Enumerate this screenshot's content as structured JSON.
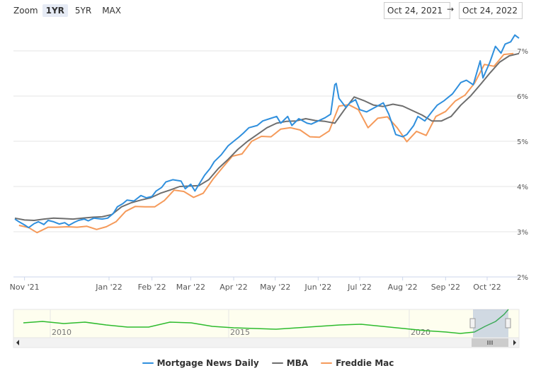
{
  "zoom": {
    "label": "Zoom",
    "buttons": [
      "1YR",
      "5YR",
      "MAX"
    ],
    "active": "1YR"
  },
  "range": {
    "from": "Oct 24, 2021",
    "arrow": "→",
    "to": "Oct 24, 2022"
  },
  "colors": {
    "mnd": "#2f8fdd",
    "mba": "#6e6e6e",
    "freddie": "#f59a5a",
    "navigator": "#2dbb2d",
    "grid": "#e6e6e6"
  },
  "chart_data": {
    "type": "line",
    "title": "",
    "xlabel": "",
    "ylabel": "",
    "ylim": [
      2,
      7.5
    ],
    "y_ticks": [
      "2%",
      "3%",
      "4%",
      "5%",
      "6%",
      "7%"
    ],
    "x_ticks": [
      "Nov '21",
      "Jan '22",
      "Feb '22",
      "Mar '22",
      "Apr '22",
      "May '22",
      "Jun '22",
      "Jul '22",
      "Aug '22",
      "Sep '22",
      "Oct '22"
    ],
    "x_range": [
      "2021-10-24",
      "2022-10-24"
    ],
    "series": [
      {
        "name": "Mortgage News Daily",
        "color": "#2f8fdd",
        "x": [
          "2021-10-25",
          "2021-10-28",
          "2021-11-01",
          "2021-11-04",
          "2021-11-08",
          "2021-11-11",
          "2021-11-15",
          "2021-11-18",
          "2021-11-22",
          "2021-11-26",
          "2021-11-30",
          "2021-12-03",
          "2021-12-07",
          "2021-12-10",
          "2021-12-14",
          "2021-12-17",
          "2021-12-21",
          "2021-12-27",
          "2021-12-31",
          "2022-01-04",
          "2022-01-07",
          "2022-01-11",
          "2022-01-14",
          "2022-01-19",
          "2022-01-24",
          "2022-01-28",
          "2022-02-01",
          "2022-02-04",
          "2022-02-08",
          "2022-02-11",
          "2022-02-16",
          "2022-02-22",
          "2022-02-25",
          "2022-03-01",
          "2022-03-04",
          "2022-03-08",
          "2022-03-11",
          "2022-03-15",
          "2022-03-18",
          "2022-03-23",
          "2022-03-28",
          "2022-04-01",
          "2022-04-05",
          "2022-04-08",
          "2022-04-12",
          "2022-04-18",
          "2022-04-22",
          "2022-04-27",
          "2022-05-02",
          "2022-05-05",
          "2022-05-10",
          "2022-05-13",
          "2022-05-18",
          "2022-05-24",
          "2022-05-27",
          "2022-06-01",
          "2022-06-06",
          "2022-06-10",
          "2022-06-13",
          "2022-06-14",
          "2022-06-16",
          "2022-06-21",
          "2022-06-24",
          "2022-06-28",
          "2022-07-01",
          "2022-07-06",
          "2022-07-12",
          "2022-07-18",
          "2022-07-22",
          "2022-07-27",
          "2022-08-01",
          "2022-08-04",
          "2022-08-09",
          "2022-08-12",
          "2022-08-17",
          "2022-08-22",
          "2022-08-26",
          "2022-08-31",
          "2022-09-06",
          "2022-09-12",
          "2022-09-16",
          "2022-09-21",
          "2022-09-26",
          "2022-09-28",
          "2022-10-03",
          "2022-10-07",
          "2022-10-11",
          "2022-10-14",
          "2022-10-18",
          "2022-10-21",
          "2022-10-24"
        ],
        "values": [
          3.28,
          3.22,
          3.15,
          3.09,
          3.18,
          3.22,
          3.16,
          3.25,
          3.22,
          3.17,
          3.2,
          3.14,
          3.21,
          3.25,
          3.28,
          3.24,
          3.3,
          3.28,
          3.3,
          3.4,
          3.55,
          3.62,
          3.7,
          3.68,
          3.8,
          3.75,
          3.78,
          3.9,
          3.98,
          4.1,
          4.15,
          4.12,
          3.95,
          4.05,
          3.9,
          4.1,
          4.25,
          4.4,
          4.55,
          4.7,
          4.9,
          5.0,
          5.1,
          5.18,
          5.3,
          5.35,
          5.45,
          5.5,
          5.55,
          5.4,
          5.55,
          5.35,
          5.5,
          5.4,
          5.38,
          5.45,
          5.52,
          5.6,
          6.25,
          6.28,
          5.95,
          5.75,
          5.85,
          5.92,
          5.7,
          5.65,
          5.75,
          5.85,
          5.6,
          5.15,
          5.1,
          5.15,
          5.35,
          5.55,
          5.45,
          5.65,
          5.8,
          5.9,
          6.05,
          6.3,
          6.35,
          6.25,
          6.78,
          6.4,
          6.75,
          7.1,
          6.95,
          7.15,
          7.2,
          7.35,
          7.28
        ]
      },
      {
        "name": "MBA",
        "color": "#6e6e6e",
        "x": [
          "2021-10-25",
          "2021-11-01",
          "2021-11-08",
          "2021-11-15",
          "2021-11-22",
          "2021-11-29",
          "2021-12-06",
          "2021-12-13",
          "2021-12-20",
          "2021-12-27",
          "2022-01-03",
          "2022-01-10",
          "2022-01-17",
          "2022-01-24",
          "2022-01-31",
          "2022-02-07",
          "2022-02-14",
          "2022-02-21",
          "2022-02-28",
          "2022-03-07",
          "2022-03-14",
          "2022-03-21",
          "2022-03-28",
          "2022-04-04",
          "2022-04-11",
          "2022-04-18",
          "2022-04-25",
          "2022-05-02",
          "2022-05-09",
          "2022-05-16",
          "2022-05-23",
          "2022-05-30",
          "2022-06-06",
          "2022-06-13",
          "2022-06-20",
          "2022-06-27",
          "2022-07-04",
          "2022-07-11",
          "2022-07-18",
          "2022-07-25",
          "2022-08-01",
          "2022-08-08",
          "2022-08-15",
          "2022-08-22",
          "2022-08-29",
          "2022-09-05",
          "2022-09-12",
          "2022-09-19",
          "2022-09-26",
          "2022-10-03",
          "2022-10-10",
          "2022-10-17",
          "2022-10-24"
        ],
        "values": [
          3.3,
          3.26,
          3.25,
          3.28,
          3.3,
          3.29,
          3.28,
          3.3,
          3.32,
          3.33,
          3.38,
          3.55,
          3.64,
          3.7,
          3.75,
          3.85,
          3.92,
          4.0,
          4.01,
          4.02,
          4.15,
          4.4,
          4.6,
          4.82,
          5.0,
          5.15,
          5.3,
          5.4,
          5.44,
          5.45,
          5.5,
          5.46,
          5.44,
          5.4,
          5.7,
          5.98,
          5.9,
          5.8,
          5.77,
          5.82,
          5.78,
          5.68,
          5.58,
          5.45,
          5.45,
          5.55,
          5.8,
          6.0,
          6.25,
          6.51,
          6.75,
          6.89,
          6.94
        ]
      },
      {
        "name": "Freddie Mac",
        "color": "#f59a5a",
        "x": [
          "2021-10-28",
          "2021-11-04",
          "2021-11-10",
          "2021-11-18",
          "2021-11-24",
          "2021-12-02",
          "2021-12-09",
          "2021-12-16",
          "2021-12-23",
          "2021-12-30",
          "2022-01-06",
          "2022-01-13",
          "2022-01-20",
          "2022-01-27",
          "2022-02-03",
          "2022-02-10",
          "2022-02-17",
          "2022-02-24",
          "2022-03-03",
          "2022-03-10",
          "2022-03-17",
          "2022-03-24",
          "2022-03-31",
          "2022-04-07",
          "2022-04-14",
          "2022-04-21",
          "2022-04-28",
          "2022-05-05",
          "2022-05-12",
          "2022-05-19",
          "2022-05-26",
          "2022-06-02",
          "2022-06-09",
          "2022-06-16",
          "2022-06-23",
          "2022-06-30",
          "2022-07-07",
          "2022-07-14",
          "2022-07-21",
          "2022-07-28",
          "2022-08-04",
          "2022-08-11",
          "2022-08-18",
          "2022-08-25",
          "2022-09-01",
          "2022-09-08",
          "2022-09-15",
          "2022-09-22",
          "2022-09-29",
          "2022-10-06",
          "2022-10-13",
          "2022-10-20"
        ],
        "values": [
          3.14,
          3.09,
          2.98,
          3.1,
          3.1,
          3.11,
          3.1,
          3.12,
          3.05,
          3.11,
          3.22,
          3.45,
          3.56,
          3.55,
          3.55,
          3.69,
          3.92,
          3.89,
          3.76,
          3.85,
          4.16,
          4.42,
          4.67,
          4.72,
          5.0,
          5.11,
          5.1,
          5.27,
          5.3,
          5.25,
          5.1,
          5.09,
          5.23,
          5.78,
          5.81,
          5.7,
          5.3,
          5.51,
          5.54,
          5.3,
          4.99,
          5.22,
          5.13,
          5.55,
          5.66,
          5.89,
          6.02,
          6.29,
          6.7,
          6.66,
          6.92,
          6.94
        ]
      }
    ]
  },
  "navigator": {
    "year_labels": [
      "2010",
      "2015",
      "2020"
    ]
  }
}
